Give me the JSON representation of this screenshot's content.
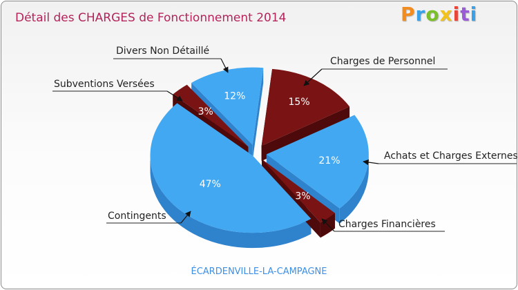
{
  "header": {
    "title": "Détail des CHARGES de Fonctionnement 2014",
    "logo": "Proxiti"
  },
  "footer": {
    "commune": "ÉCARDENVILLE-LA-CAMPAGNE"
  },
  "colors": {
    "blue": "#42a8f2",
    "blue_side": "#2f82cc",
    "red": "#7a1414",
    "red_side": "#4e0a0a",
    "logo": [
      "#f28c1e",
      "#3aa0e8",
      "#7bbf2a",
      "#f2c21e",
      "#e8453a",
      "#9a5bd6",
      "#3aa0e8"
    ]
  },
  "chart_data": {
    "type": "pie",
    "title": "Détail des CHARGES de Fonctionnement 2014",
    "slices": [
      {
        "label": "Charges de Personnel",
        "value": 15,
        "display": "15%",
        "color": "#7a1414"
      },
      {
        "label": "Achats et Charges Externes",
        "value": 21,
        "display": "21%",
        "color": "#42a8f2"
      },
      {
        "label": "Charges Financières",
        "value": 3,
        "display": "3%",
        "color": "#7a1414"
      },
      {
        "label": "Contingents",
        "value": 47,
        "display": "47%",
        "color": "#42a8f2"
      },
      {
        "label": "Subventions Versées",
        "value": 3,
        "display": "3%",
        "color": "#7a1414"
      },
      {
        "label": "Divers Non Détaillé",
        "value": 12,
        "display": "12%",
        "color": "#42a8f2"
      }
    ]
  }
}
